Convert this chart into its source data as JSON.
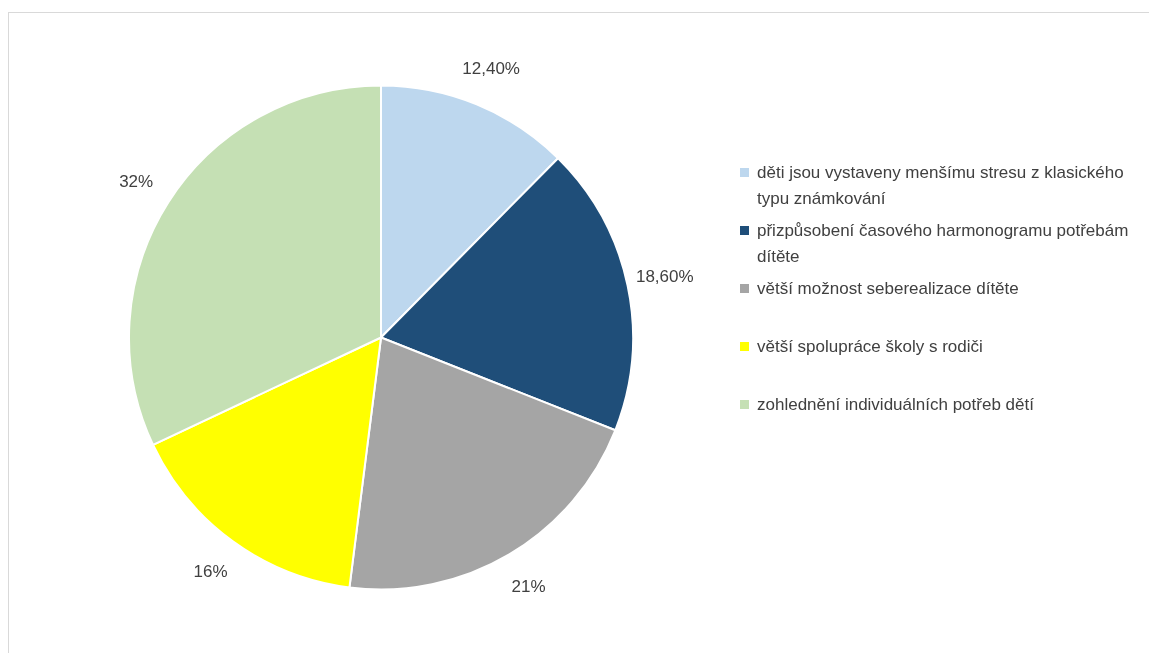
{
  "chart_data": {
    "type": "pie",
    "categories": [
      "děti jsou vystaveny menšímu stresu z klasického typu známkování",
      "přizpůsobení časového harmonogramu potřebám dítěte",
      "větší možnost seberealizace dítěte",
      "větší spolupráce školy s rodiči",
      "zohlednění individuálních potřeb dětí"
    ],
    "values": [
      12.4,
      18.6,
      21,
      16,
      32
    ],
    "colors": [
      "#bdd7ee",
      "#1f4e79",
      "#a5a5a5",
      "#ffff00",
      "#c5e0b4"
    ],
    "value_labels": [
      "12,40%",
      "18,60%",
      "21%",
      "16%",
      "32%"
    ],
    "legend": "right"
  }
}
